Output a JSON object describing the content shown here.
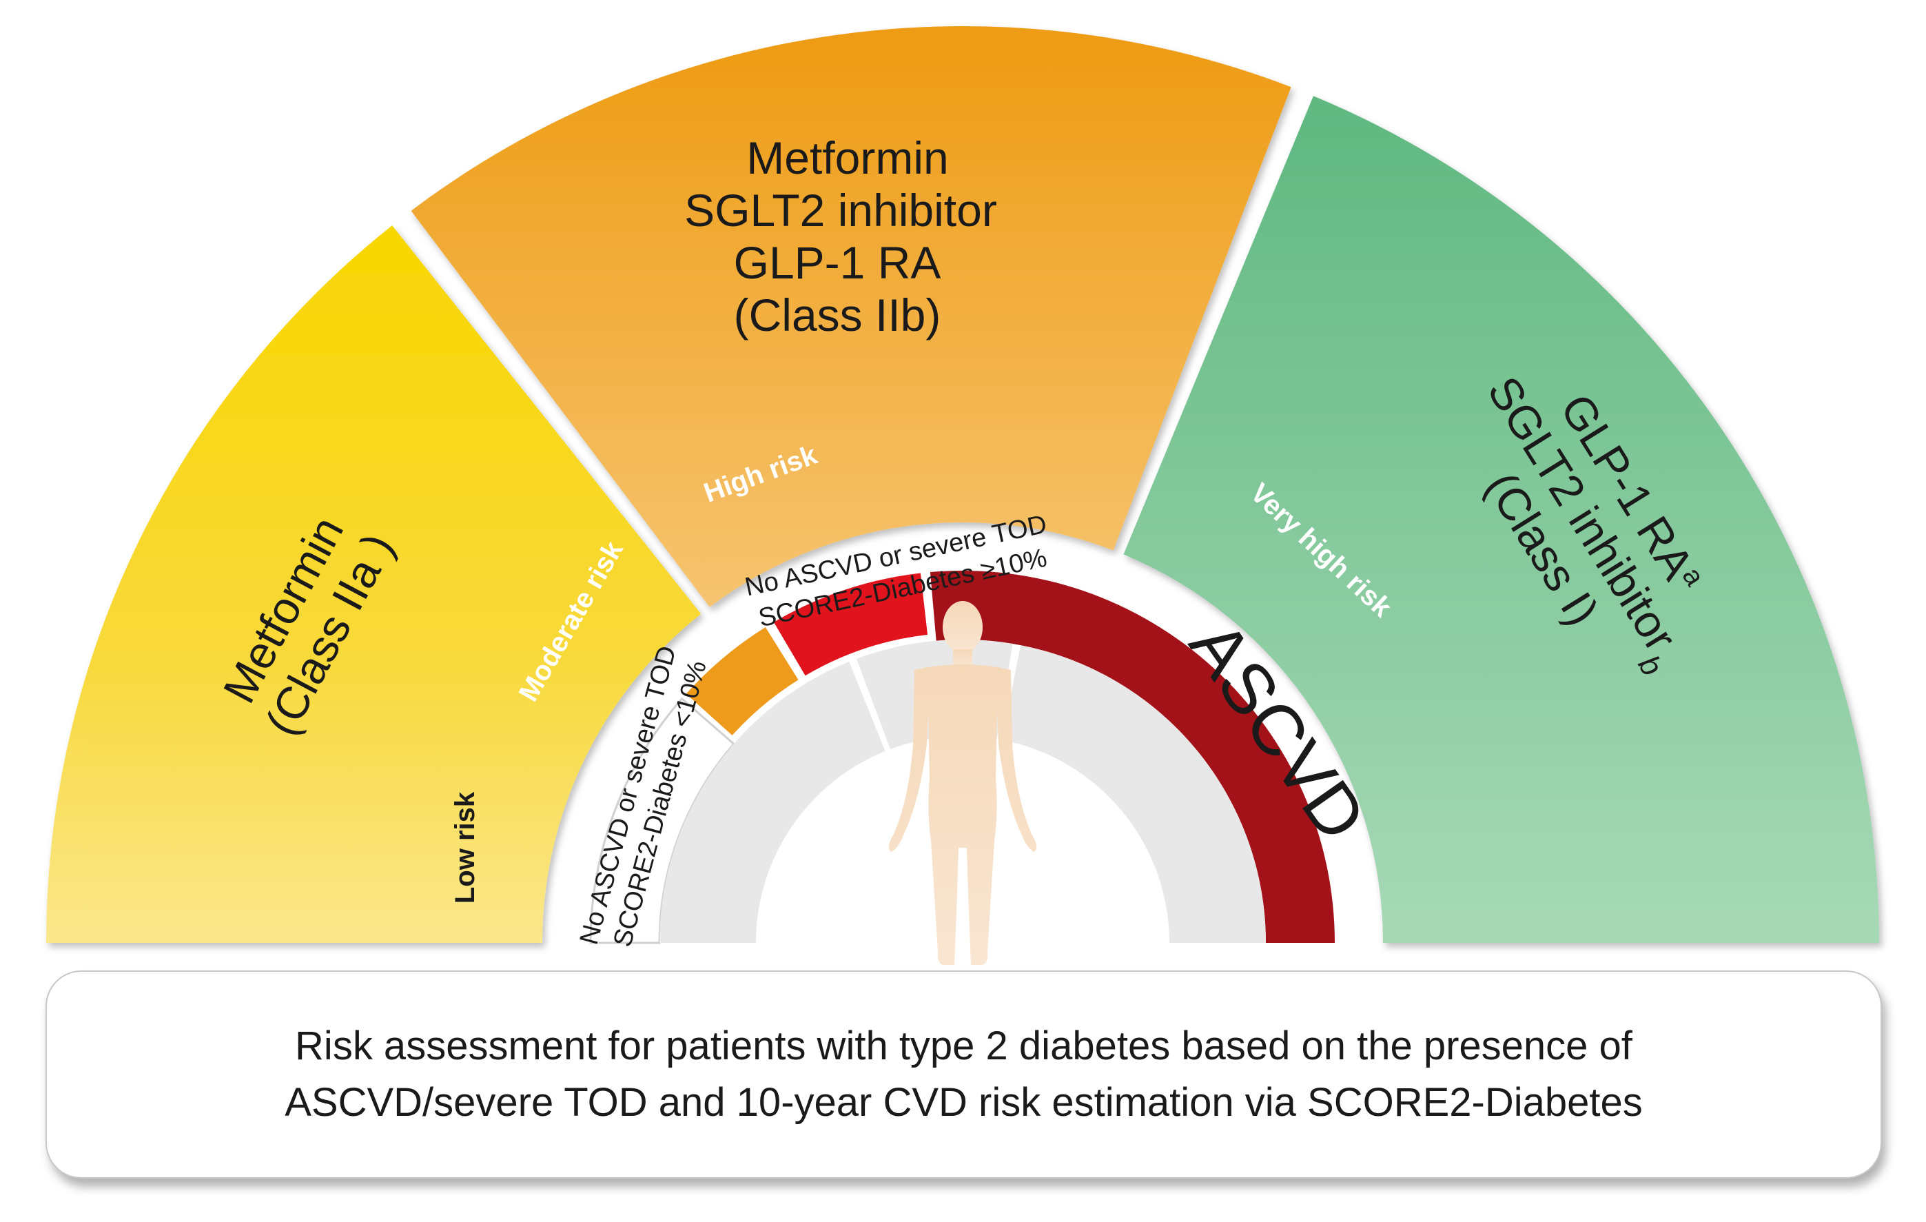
{
  "outer_segments": {
    "left": {
      "lines": [
        "Metformin",
        "(Class IIa )"
      ],
      "color": "#f7d400"
    },
    "middle": {
      "lines": [
        "Metformin",
        "SGLT2 inhibitor",
        "GLP-1 RA",
        "(Class IIb)"
      ],
      "color": "#f0a22d"
    },
    "right": {
      "line1": "GLP-1 RA",
      "line1_sup": "a",
      "line2": "SGLT2 inhibitor",
      "line2_sup": "b",
      "line3": "(Class I)",
      "color": "#69ba86"
    }
  },
  "risk_bands": {
    "low": {
      "label": "Low risk",
      "color": "#ffffff"
    },
    "moderate": {
      "label": "Moderate risk",
      "color": "#ee9a1b"
    },
    "high": {
      "label": "High risk",
      "color": "#e1131d"
    },
    "very_high": {
      "label": "Very high risk",
      "color": "#a31219"
    }
  },
  "criteria": {
    "low": [
      "No ASCVD or severe TOD",
      "SCORE2-Diabetes <10%"
    ],
    "high": [
      "No ASCVD or severe TOD",
      "SCORE2-Diabetes ≥10%"
    ],
    "very_high": "ASCVD"
  },
  "caption": {
    "line1": "Risk assessment for patients with type 2 diabetes based on the presence of",
    "line2": "ASCVD/severe TOD and 10-year CVD risk estimation via SCORE2-Diabetes"
  }
}
